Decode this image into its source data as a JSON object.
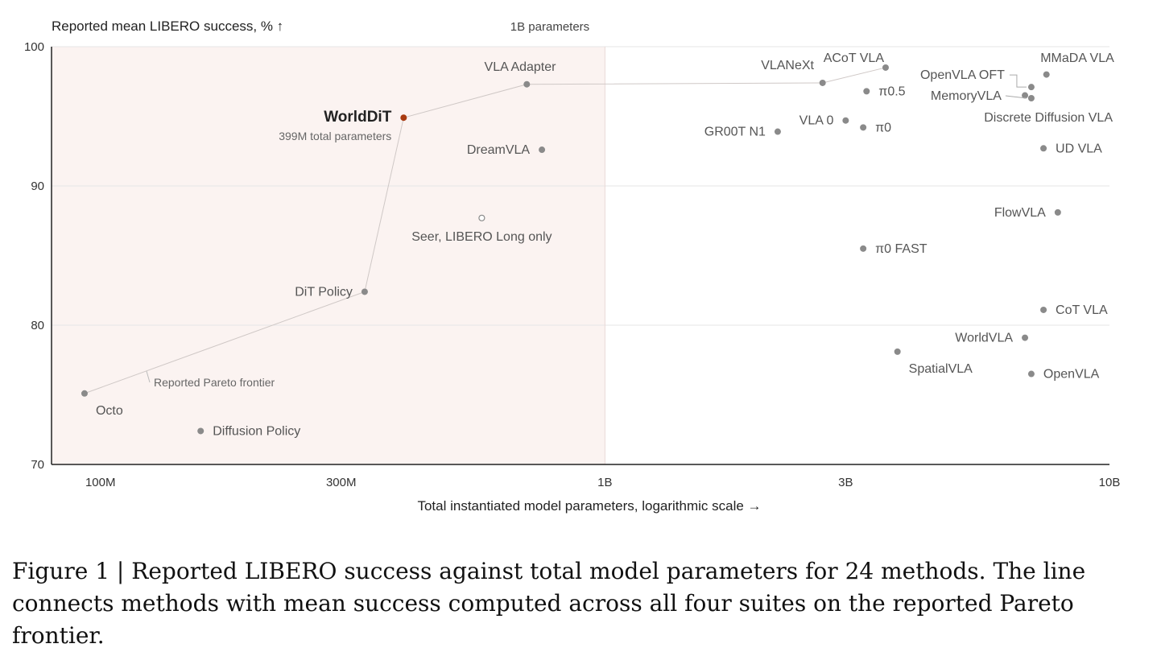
{
  "chart_data": {
    "type": "scatter",
    "ylabel": "Reported mean LIBERO success, % ↑",
    "xlabel": "Total instantiated model parameters, logarithmic scale →",
    "x_scale": "log",
    "xlim": [
      80000000,
      10000000000
    ],
    "ylim": [
      70,
      100
    ],
    "x_ticks": [
      {
        "value": 100000000,
        "label": "100M"
      },
      {
        "value": 300000000,
        "label": "300M"
      },
      {
        "value": 1000000000,
        "label": "1B"
      },
      {
        "value": 3000000000,
        "label": "3B"
      },
      {
        "value": 10000000000,
        "label": "10B"
      }
    ],
    "y_ticks": [
      {
        "value": 70,
        "label": "70"
      },
      {
        "value": 80,
        "label": "80"
      },
      {
        "value": 90,
        "label": "90"
      },
      {
        "value": 100,
        "label": "100"
      }
    ],
    "grid": "horizontal",
    "region": {
      "x_max": 1000000000,
      "label": "1B parameters",
      "color": "#fbf3f1"
    },
    "highlight_color": "#a83a10",
    "point_color": "#8a8a8a",
    "pareto_label": "Reported Pareto frontier",
    "pareto_frontier": [
      "Octo",
      "DiT Policy",
      "WorldDiT",
      "VLA Adapter",
      "VLANeXt",
      "ACoT VLA"
    ],
    "points": [
      {
        "name": "Octo",
        "x": 93000000,
        "y": 75.1,
        "label_pos": "below-right"
      },
      {
        "name": "Diffusion Policy",
        "x": 158000000,
        "y": 72.4,
        "label_pos": "right"
      },
      {
        "name": "DiT Policy",
        "x": 334000000,
        "y": 82.4,
        "label_pos": "left"
      },
      {
        "name": "WorldDiT",
        "x": 399000000,
        "y": 94.9,
        "label_pos": "left",
        "highlight": true,
        "sublabel": "399M total parameters"
      },
      {
        "name": "VLA Adapter",
        "x": 700000000,
        "y": 97.3,
        "label_pos": "above"
      },
      {
        "name": "DreamVLA",
        "x": 750000000,
        "y": 92.6,
        "label_pos": "left"
      },
      {
        "name": "Seer, LIBERO Long only",
        "x": 570000000,
        "y": 87.7,
        "label_pos": "below",
        "open": true
      },
      {
        "name": "GR00T N1",
        "x": 2200000000,
        "y": 93.9,
        "label_pos": "left"
      },
      {
        "name": "VLANeXt",
        "x": 2700000000,
        "y": 97.4,
        "label_pos": "above-left"
      },
      {
        "name": "ACoT VLA",
        "x": 3600000000,
        "y": 98.5,
        "label_pos": "above-left"
      },
      {
        "name": "VLA 0",
        "x": 3000000000,
        "y": 94.7,
        "label_pos": "left"
      },
      {
        "name": "π0.5",
        "x": 3300000000,
        "y": 96.8,
        "label_pos": "right"
      },
      {
        "name": "π0",
        "x": 3250000000,
        "y": 94.2,
        "label_pos": "right"
      },
      {
        "name": "π0 FAST",
        "x": 3250000000,
        "y": 85.5,
        "label_pos": "right"
      },
      {
        "name": "SpatialVLA",
        "x": 3800000000,
        "y": 78.1,
        "label_pos": "below-right"
      },
      {
        "name": "WorldVLA",
        "x": 6800000000,
        "y": 79.1,
        "label_pos": "left"
      },
      {
        "name": "OpenVLA",
        "x": 7000000000,
        "y": 76.5,
        "label_pos": "right"
      },
      {
        "name": "OpenVLA OFT",
        "x": 7000000000,
        "y": 97.1,
        "label_pos": "leader-left"
      },
      {
        "name": "MemoryVLA",
        "x": 7000000000,
        "y": 96.3,
        "label_pos": "leader-left"
      },
      {
        "name": "Discrete Diffusion VLA",
        "x": 6800000000,
        "y": 96.5,
        "label_pos": "below-left"
      },
      {
        "name": "MMaDA VLA",
        "x": 7500000000,
        "y": 98.0,
        "label_pos": "above"
      },
      {
        "name": "UD VLA",
        "x": 7400000000,
        "y": 92.7,
        "label_pos": "right"
      },
      {
        "name": "FlowVLA",
        "x": 7900000000,
        "y": 88.1,
        "label_pos": "left"
      },
      {
        "name": "CoT VLA",
        "x": 7400000000,
        "y": 81.1,
        "label_pos": "right"
      }
    ]
  },
  "caption": "Figure 1 | Reported LIBERO success against total model parameters for 24 methods. The line connects methods with mean success computed across all four suites on the reported Pareto frontier."
}
